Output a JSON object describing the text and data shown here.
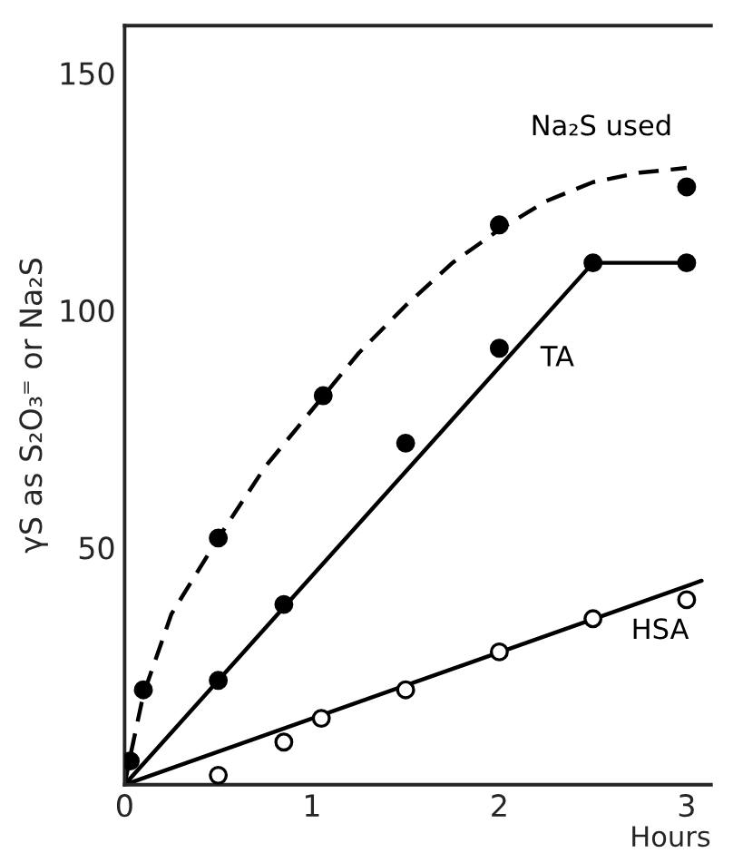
{
  "chart_data": {
    "type": "line",
    "xlabel": "Hours",
    "ylabel": "γS as S₂O₃⁼ or Na₂S",
    "xlim": [
      0,
      3.13
    ],
    "ylim": [
      0,
      160
    ],
    "xticks": [
      0,
      1,
      2,
      3
    ],
    "yticks": [
      50,
      100,
      150
    ],
    "grid": false,
    "legend": false,
    "series": [
      {
        "name": "Na₂S used",
        "line_style": "dashed",
        "marker": "none",
        "color": "#000000",
        "x": [
          0,
          0.03,
          0.1,
          0.25,
          0.5,
          0.75,
          1,
          1.25,
          1.5,
          1.75,
          2,
          2.25,
          2.5,
          2.75,
          3
        ],
        "values": [
          0,
          6,
          19,
          36,
          52,
          67,
          79,
          91,
          101,
          110,
          117,
          123,
          127,
          129,
          130
        ]
      },
      {
        "type": "scatter",
        "marker": "circle",
        "color": "#000000",
        "x": [
          0.03,
          0.1,
          0.5,
          1.06,
          2.0,
          3.0
        ],
        "values": [
          5,
          20,
          52,
          82,
          118,
          126
        ]
      },
      {
        "name": "TA",
        "line_style": "solid",
        "marker": "none",
        "color": "#000000",
        "x": [
          0,
          2.5,
          3.0
        ],
        "values": [
          0,
          110,
          110
        ]
      },
      {
        "type": "scatter",
        "marker": "circle",
        "color": "#000000",
        "x": [
          0.5,
          0.85,
          1.5,
          2.0,
          2.5,
          3.0
        ],
        "values": [
          22,
          38,
          72,
          92,
          110,
          110
        ]
      },
      {
        "name": "HSA",
        "line_style": "solid",
        "marker": "none",
        "color": "#000000",
        "x": [
          0,
          3.08
        ],
        "values": [
          0,
          43
        ]
      },
      {
        "type": "scatter",
        "marker": "circle",
        "color": "#ffffff",
        "x": [
          0.5,
          0.85,
          1.05,
          1.5,
          2.0,
          2.5,
          3.0
        ],
        "values": [
          2,
          9,
          14,
          20,
          28,
          35,
          39
        ]
      }
    ]
  }
}
